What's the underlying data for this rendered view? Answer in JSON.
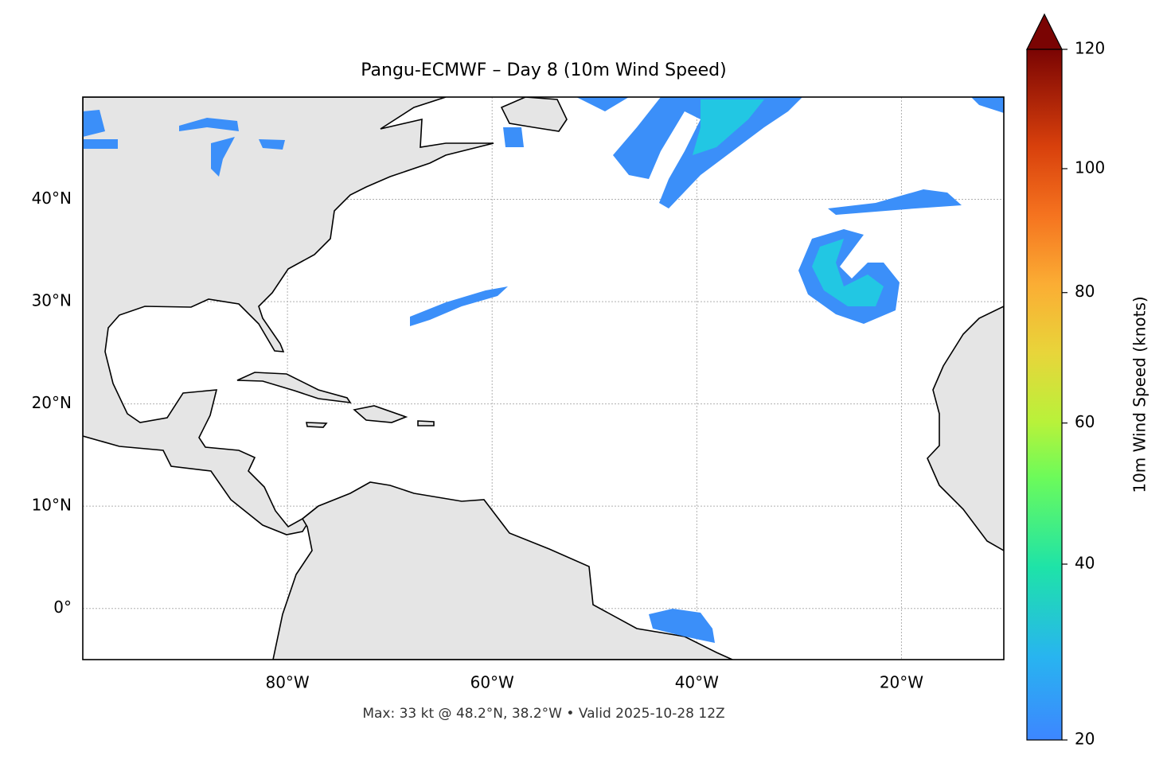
{
  "chart_data": {
    "type": "map",
    "title": "Pangu-ECMWF – Day 8 (10m Wind Speed)",
    "footer": "Max: 33 kt @ 48.2°N, 38.2°W • Valid 2025-10-28 12Z",
    "xlim": [
      -100,
      -10
    ],
    "ylim": [
      -5,
      50
    ],
    "xticks": [
      {
        "value": -80,
        "label": "80°W"
      },
      {
        "value": -60,
        "label": "60°W"
      },
      {
        "value": -40,
        "label": "40°W"
      },
      {
        "value": -20,
        "label": "20°W"
      }
    ],
    "yticks": [
      {
        "value": 0,
        "label": "0°"
      },
      {
        "value": 10,
        "label": "10°N"
      },
      {
        "value": 20,
        "label": "20°N"
      },
      {
        "value": 30,
        "label": "30°N"
      },
      {
        "value": 40,
        "label": "40°N"
      }
    ],
    "grid": true,
    "colorbar": {
      "label": "10m Wind Speed (knots)",
      "lim": [
        20,
        120
      ],
      "ticks": [
        20,
        40,
        60,
        80,
        100,
        120
      ],
      "norm": "power",
      "gamma": 0.85,
      "extend": "max"
    }
  }
}
